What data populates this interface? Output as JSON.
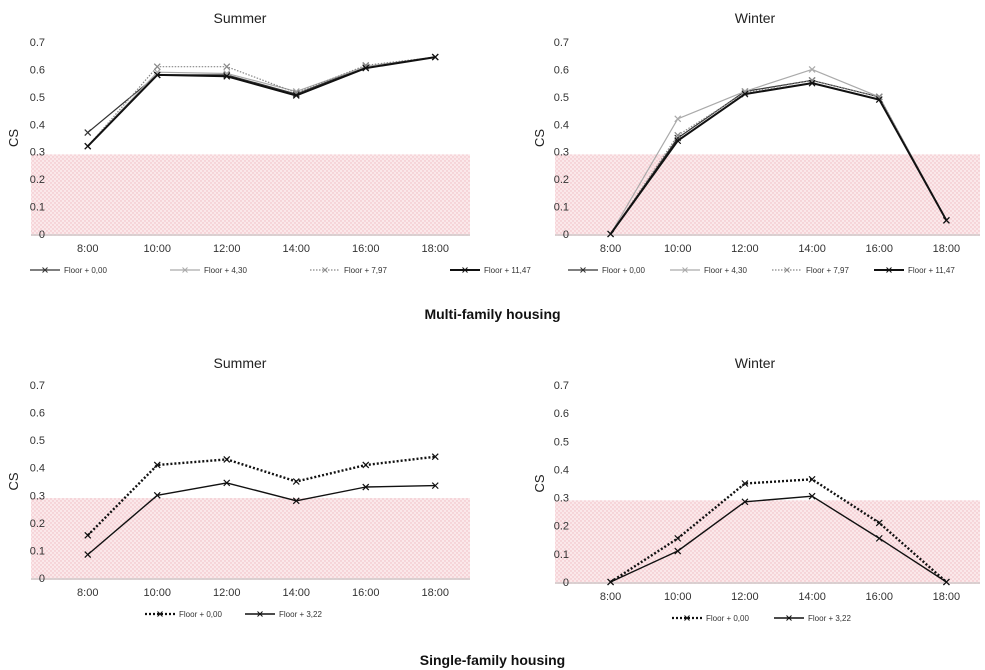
{
  "group_captions": [
    "Multi-family housing",
    "Single-family housing"
  ],
  "chart_data": [
    {
      "type": "line",
      "title": "Summer",
      "ylabel": "CS",
      "xlabel": "",
      "categories": [
        "8:00",
        "10:00",
        "12:00",
        "14:00",
        "16:00",
        "18:00"
      ],
      "ylim": [
        0,
        0.7
      ],
      "yticks": [
        "0",
        "0.1",
        "0.2",
        "0.3",
        "0.4",
        "0.5",
        "0.6",
        "0.7"
      ],
      "threshold_band": [
        0,
        0.29
      ],
      "legend_position": "bottom",
      "series": [
        {
          "name": "Floor + 0,00",
          "values": [
            0.37,
            0.58,
            0.58,
            0.51,
            0.61,
            0.645
          ],
          "color": "#333333",
          "dash": "solid",
          "width": 1.2
        },
        {
          "name": "Floor + 4,30",
          "values": [
            0.32,
            0.59,
            0.585,
            0.52,
            0.61,
            0.645
          ],
          "color": "#aaaaaa",
          "dash": "solid",
          "width": 1.2
        },
        {
          "name": "Floor + 7,97",
          "values": [
            0.32,
            0.61,
            0.61,
            0.515,
            0.615,
            0.645
          ],
          "color": "#888888",
          "dash": "dotted",
          "width": 1.2
        },
        {
          "name": "Floor + 11,47",
          "values": [
            0.32,
            0.58,
            0.575,
            0.505,
            0.605,
            0.645
          ],
          "color": "#111111",
          "dash": "solid",
          "width": 2
        }
      ]
    },
    {
      "type": "line",
      "title": "Winter",
      "ylabel": "CS",
      "xlabel": "",
      "categories": [
        "8:00",
        "10:00",
        "12:00",
        "14:00",
        "16:00",
        "18:00"
      ],
      "ylim": [
        0,
        0.7
      ],
      "yticks": [
        "0",
        "0.1",
        "0.2",
        "0.3",
        "0.4",
        "0.5",
        "0.6",
        "0.7"
      ],
      "threshold_band": [
        0,
        0.29
      ],
      "legend_position": "bottom",
      "series": [
        {
          "name": "Floor + 0,00",
          "values": [
            0.0,
            0.35,
            0.52,
            0.56,
            0.5,
            0.05
          ],
          "color": "#333333",
          "dash": "solid",
          "width": 1.2
        },
        {
          "name": "Floor + 4,30",
          "values": [
            0.0,
            0.42,
            0.52,
            0.6,
            0.5,
            0.05
          ],
          "color": "#aaaaaa",
          "dash": "solid",
          "width": 1.2
        },
        {
          "name": "Floor + 7,97",
          "values": [
            0.0,
            0.36,
            0.515,
            0.56,
            0.5,
            0.05
          ],
          "color": "#888888",
          "dash": "dotted",
          "width": 1.2
        },
        {
          "name": "Floor + 11,47",
          "values": [
            0.0,
            0.34,
            0.51,
            0.55,
            0.49,
            0.05
          ],
          "color": "#111111",
          "dash": "solid",
          "width": 2
        }
      ]
    },
    {
      "type": "line",
      "title": "Summer",
      "ylabel": "CS",
      "xlabel": "",
      "categories": [
        "8:00",
        "10:00",
        "12:00",
        "14:00",
        "16:00",
        "18:00"
      ],
      "ylim": [
        0,
        0.7
      ],
      "yticks": [
        "0",
        "0.1",
        "0.2",
        "0.3",
        "0.4",
        "0.5",
        "0.6",
        "0.7"
      ],
      "threshold_band": [
        0,
        0.29
      ],
      "legend_position": "bottom",
      "series": [
        {
          "name": "Floor + 0,00",
          "values": [
            0.155,
            0.41,
            0.43,
            0.35,
            0.41,
            0.44
          ],
          "color": "#111111",
          "dash": "dotted",
          "width": 2.4
        },
        {
          "name": "Floor + 3,22",
          "values": [
            0.085,
            0.3,
            0.345,
            0.28,
            0.33,
            0.335
          ],
          "color": "#111111",
          "dash": "solid",
          "width": 1.4
        }
      ]
    },
    {
      "type": "line",
      "title": "Winter",
      "ylabel": "CS",
      "xlabel": "",
      "categories": [
        "8:00",
        "10:00",
        "12:00",
        "14:00",
        "16:00",
        "18:00"
      ],
      "ylim": [
        0,
        0.7
      ],
      "yticks": [
        "0",
        "0.1",
        "0.2",
        "0.3",
        "0.4",
        "0.5",
        "0.6",
        "0.7"
      ],
      "threshold_band": [
        0,
        0.29
      ],
      "legend_position": "bottom",
      "series": [
        {
          "name": "Floor + 0,00",
          "values": [
            0.0,
            0.155,
            0.35,
            0.365,
            0.21,
            0.0
          ],
          "color": "#111111",
          "dash": "dotted",
          "width": 2.4
        },
        {
          "name": "Floor + 3,22",
          "values": [
            0.0,
            0.11,
            0.285,
            0.305,
            0.155,
            0.0
          ],
          "color": "#111111",
          "dash": "solid",
          "width": 1.4
        }
      ]
    }
  ]
}
